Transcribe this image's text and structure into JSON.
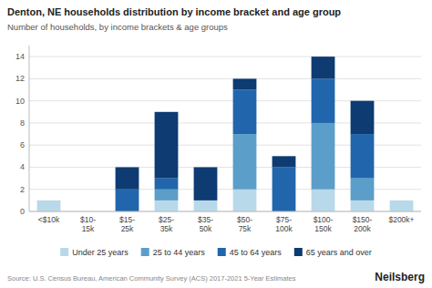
{
  "chart_data": {
    "type": "bar",
    "stacked": true,
    "title": "Denton, NE households distribution by income bracket and age group",
    "subtitle": "Number of households, by income brackets & age groups",
    "annotations": [
      "Source: U.S. Census Bureau, American Community Survey (ACS) 2017-2021 5-Year Estimates",
      "Neilsberg"
    ],
    "categories": [
      "<$10k",
      "$10-\n15k",
      "$15-\n25k",
      "$25-\n35k",
      "$35-\n50k",
      "$50-\n75k",
      "$75-\n100k",
      "$100-\n150k",
      "$150-\n200k",
      "$200k+"
    ],
    "series": [
      {
        "name": "Under 25 years",
        "color": "#b8d9ea",
        "values": [
          1,
          0,
          0,
          1,
          1,
          2,
          0,
          2,
          1,
          1
        ]
      },
      {
        "name": "25 to 44 years",
        "color": "#5b9ec9",
        "values": [
          0,
          0,
          0,
          1,
          0,
          5,
          0,
          6,
          2,
          0
        ]
      },
      {
        "name": "45 to 64 years",
        "color": "#2166ac",
        "values": [
          0,
          0,
          2,
          1,
          0,
          4,
          4,
          4,
          4,
          0
        ]
      },
      {
        "name": "65 years and over",
        "color": "#0d3b72",
        "values": [
          0,
          0,
          2,
          6,
          3,
          1,
          1,
          2,
          3,
          0
        ]
      }
    ],
    "ylim": [
      0,
      15
    ],
    "yticks": [
      0,
      2,
      4,
      6,
      8,
      10,
      12,
      14
    ],
    "grid": true,
    "legend": "bottom"
  }
}
